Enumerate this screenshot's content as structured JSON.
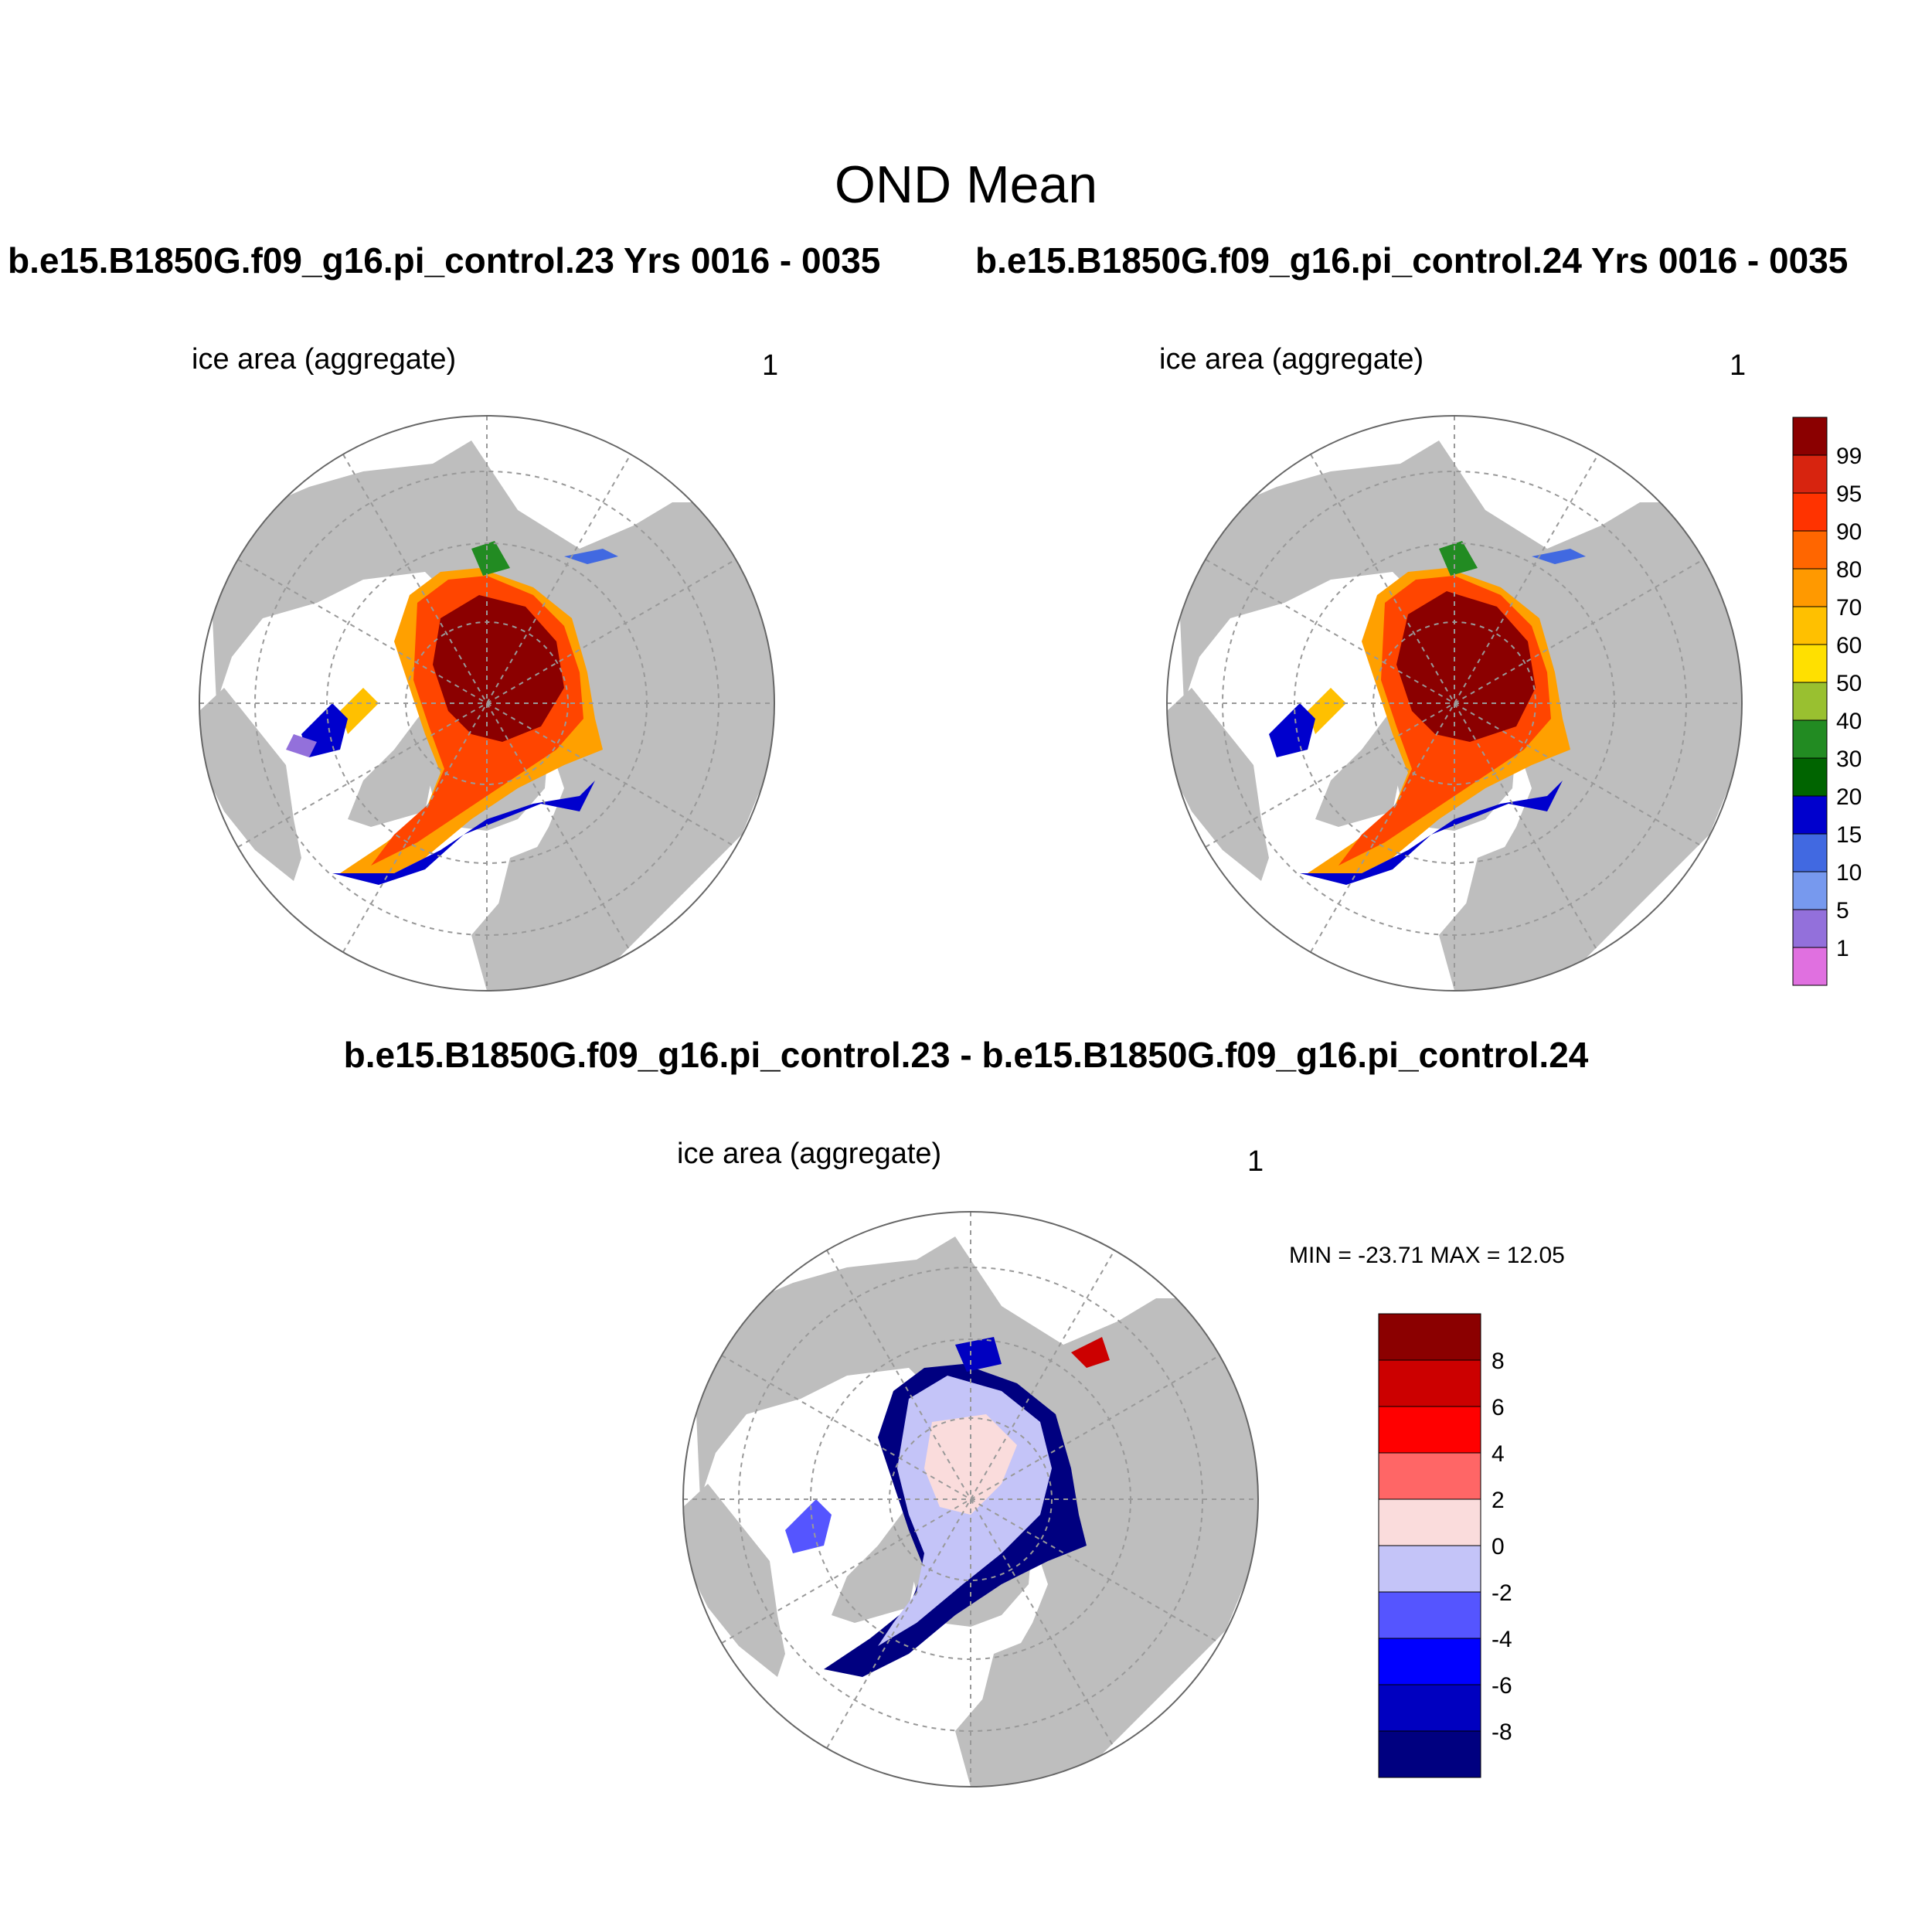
{
  "title": "OND Mean",
  "panels": [
    {
      "run_title": "b.e15.B1850G.f09_g16.pi_control.23  Yrs 0016 - 0035",
      "variable": "ice area  (aggregate)",
      "units": "1"
    },
    {
      "run_title": "b.e15.B1850G.f09_g16.pi_control.24  Yrs 0016 - 0035",
      "variable": "ice area  (aggregate)",
      "units": "1"
    },
    {
      "run_title": "b.e15.B1850G.f09_g16.pi_control.23 - b.e15.B1850G.f09_g16.pi_control.24",
      "variable": "ice area  (aggregate)",
      "units": "1",
      "minmax": "MIN = -23.71 MAX =  12.05"
    }
  ],
  "colorbar_main": {
    "labels": [
      "99",
      "95",
      "90",
      "80",
      "70",
      "60",
      "50",
      "40",
      "30",
      "20",
      "15",
      "10",
      "5",
      "1"
    ],
    "colors": [
      "#8b0000",
      "#d7240f",
      "#ff3300",
      "#ff6600",
      "#ff9900",
      "#ffc000",
      "#ffe000",
      "#99c030",
      "#228b22",
      "#006400",
      "#0000cd",
      "#4169e1",
      "#7799ee",
      "#9370db",
      "#e070e0"
    ]
  },
  "colorbar_diff": {
    "labels": [
      "8",
      "6",
      "4",
      "2",
      "0",
      "-2",
      "-4",
      "-6",
      "-8"
    ],
    "colors": [
      "#8b0000",
      "#cc0000",
      "#ff0000",
      "#ff6666",
      "#fadcdc",
      "#c4c4f8",
      "#5555ff",
      "#0000ff",
      "#0000c0",
      "#000080"
    ]
  },
  "map_colors": {
    "land": "#bebebe",
    "ocean": "#ffffff"
  }
}
